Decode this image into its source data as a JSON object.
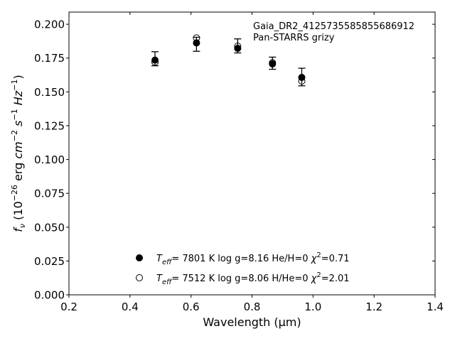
{
  "chart_data": {
    "type": "scatter",
    "annotation": [
      "Gaia_DR2_4125735585855686912",
      "Pan-STARRS grizy"
    ],
    "xlabel": "Wavelength (μm)",
    "ylabel_parts": {
      "f": "f",
      "nu": "ν",
      "mid": " (10",
      "exp": "−26",
      "unit": " erg ",
      "cm": "cm",
      "cm_exp": "−2",
      "s": " s",
      "s_exp": "−1",
      "hz": " Hz",
      "hz_exp": "−1",
      "close": ")"
    },
    "xlim": [
      0.2,
      1.4
    ],
    "ylim": [
      0.0,
      0.209
    ],
    "xticks": [
      0.2,
      0.4,
      0.6,
      0.8,
      1.0,
      1.2,
      1.4
    ],
    "xtick_labels": [
      "0.2",
      "0.4",
      "0.6",
      "0.8",
      "1.0",
      "1.2",
      "1.4"
    ],
    "yticks": [
      0.0,
      0.025,
      0.05,
      0.075,
      0.1,
      0.125,
      0.15,
      0.175,
      0.2
    ],
    "ytick_labels": [
      "0.000",
      "0.025",
      "0.050",
      "0.075",
      "0.100",
      "0.125",
      "0.150",
      "0.175",
      "0.200"
    ],
    "observed": {
      "x": [
        0.482,
        0.618,
        0.753,
        0.867,
        0.963
      ],
      "y": [
        0.1745,
        0.1852,
        0.184,
        0.1712,
        0.161
      ],
      "yerr": [
        0.0052,
        0.0052,
        0.0052,
        0.0045,
        0.0065
      ]
    },
    "series": [
      {
        "marker": "filled",
        "x": [
          0.482,
          0.618,
          0.753,
          0.867,
          0.963
        ],
        "y": [
          0.1735,
          0.1862,
          0.1822,
          0.1707,
          0.1607
        ],
        "legend": {
          "teff_label": "T",
          "teff_sub": "eff",
          "rest": "=  7801 K  log g=8.16  He/H=0  ",
          "chi": "χ",
          "chi_exp": "2",
          "chi_val": "=0.71"
        }
      },
      {
        "marker": "open",
        "x": [
          0.482,
          0.618,
          0.753,
          0.867,
          0.963
        ],
        "y": [
          0.172,
          0.1899,
          0.1838,
          0.1715,
          0.158
        ],
        "legend": {
          "teff_label": "T",
          "teff_sub": "eff",
          "rest": "=  7512 K  log g=8.06  H/He=0  ",
          "chi": "χ",
          "chi_exp": "2",
          "chi_val": "=2.01"
        }
      }
    ],
    "grid": false,
    "legend_position": "bottom-center"
  }
}
